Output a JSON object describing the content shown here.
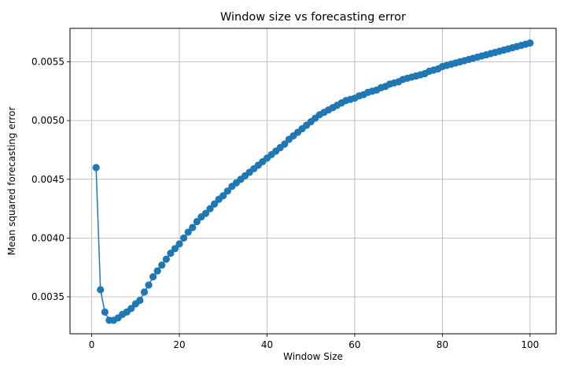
{
  "chart_data": {
    "type": "line",
    "title": "Window size vs forecasting error",
    "xlabel": "Window Size",
    "ylabel": "Mean squared forecasting error",
    "xlim": [
      -4.95,
      105.95
    ],
    "ylim": [
      0.003185,
      0.005785
    ],
    "xticks": [
      0,
      20,
      40,
      60,
      80,
      100
    ],
    "yticks": [
      0.0035,
      0.004,
      0.0045,
      0.005,
      0.0055
    ],
    "ytick_labels": [
      "0.0035",
      "0.0040",
      "0.0045",
      "0.0050",
      "0.0055"
    ],
    "grid": true,
    "marker": "circle",
    "series": [
      {
        "color": "#1f77b4",
        "x": [
          1,
          2,
          3,
          4,
          5,
          6,
          7,
          8,
          9,
          10,
          11,
          12,
          13,
          14,
          15,
          16,
          17,
          18,
          19,
          20,
          21,
          22,
          23,
          24,
          25,
          26,
          27,
          28,
          29,
          30,
          31,
          32,
          33,
          34,
          35,
          36,
          37,
          38,
          39,
          40,
          41,
          42,
          43,
          44,
          45,
          46,
          47,
          48,
          49,
          50,
          51,
          52,
          53,
          54,
          55,
          56,
          57,
          58,
          59,
          60,
          61,
          62,
          63,
          64,
          65,
          66,
          67,
          68,
          69,
          70,
          71,
          72,
          73,
          74,
          75,
          76,
          77,
          78,
          79,
          80,
          81,
          82,
          83,
          84,
          85,
          86,
          87,
          88,
          89,
          90,
          91,
          92,
          93,
          94,
          95,
          96,
          97,
          98,
          99,
          100
        ],
        "values": [
          0.0046,
          0.00356,
          0.00337,
          0.0033,
          0.0033,
          0.00332,
          0.00335,
          0.00337,
          0.0034,
          0.00344,
          0.00347,
          0.00354,
          0.0036,
          0.00367,
          0.00372,
          0.00377,
          0.00382,
          0.00387,
          0.00391,
          0.00395,
          0.004,
          0.00405,
          0.00409,
          0.00414,
          0.00418,
          0.00421,
          0.00425,
          0.00429,
          0.00433,
          0.00436,
          0.0044,
          0.00444,
          0.00447,
          0.0045,
          0.00453,
          0.00456,
          0.00459,
          0.00462,
          0.00465,
          0.00468,
          0.00471,
          0.00474,
          0.00477,
          0.0048,
          0.00484,
          0.00487,
          0.0049,
          0.00493,
          0.00496,
          0.00499,
          0.00502,
          0.00505,
          0.00507,
          0.00509,
          0.00511,
          0.00513,
          0.00515,
          0.00517,
          0.00518,
          0.00519,
          0.00521,
          0.00522,
          0.00524,
          0.00525,
          0.00526,
          0.00528,
          0.00529,
          0.00531,
          0.00532,
          0.00533,
          0.00535,
          0.00536,
          0.00537,
          0.00538,
          0.00539,
          0.0054,
          0.00542,
          0.00543,
          0.00544,
          0.00546,
          0.00547,
          0.00548,
          0.00549,
          0.0055,
          0.00551,
          0.00552,
          0.00553,
          0.00554,
          0.00555,
          0.00556,
          0.00557,
          0.00558,
          0.00559,
          0.0056,
          0.00561,
          0.00562,
          0.00563,
          0.00564,
          0.00565,
          0.00566
        ]
      }
    ]
  }
}
